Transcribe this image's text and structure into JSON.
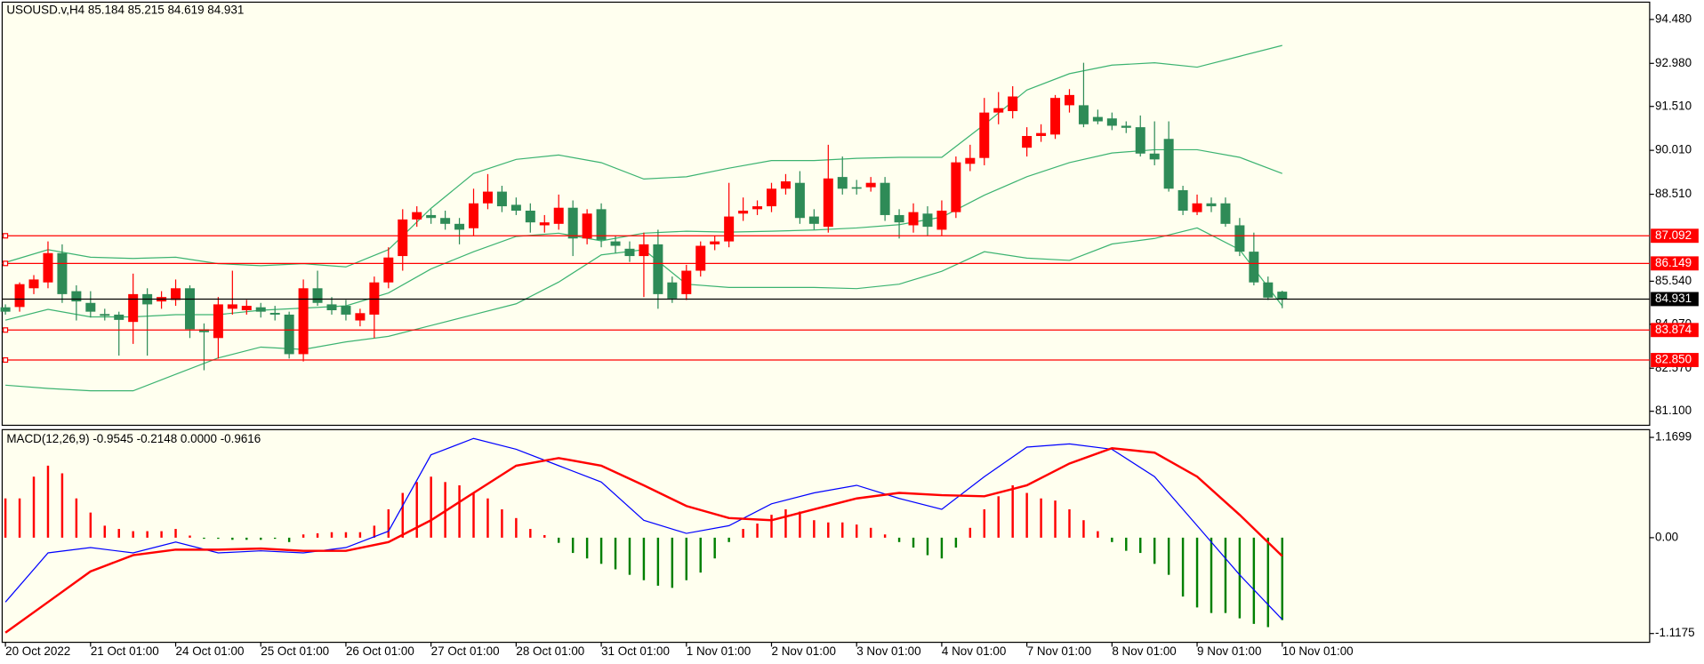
{
  "chart_data": [
    {
      "type": "candlestick",
      "title": "USOUSD.v,H4  85.184 85.215 84.619 84.931",
      "up_color": "#ff0000",
      "down_color": "#2e8b57",
      "open": [
        84.65,
        84.66,
        85.3,
        85.5,
        86.5,
        85.2,
        84.8,
        84.42,
        84.4,
        84.15,
        85.1,
        84.85,
        84.9,
        85.3,
        83.9,
        83.6,
        84.6,
        84.55,
        84.65,
        84.46,
        84.4,
        83.05,
        85.3,
        84.75,
        84.7,
        84.2,
        84.4,
        85.5,
        86.4,
        87.65,
        87.8,
        87.7,
        87.5,
        87.35,
        88.2,
        88.6,
        88.15,
        87.95,
        87.45,
        87.5,
        88.05,
        87.0,
        88.0,
        86.9,
        86.65,
        86.4,
        86.8,
        85.5,
        85.1,
        85.9,
        86.8,
        86.9,
        87.85,
        88.0,
        88.1,
        88.7,
        88.9,
        87.75,
        87.4,
        89.1,
        88.75,
        88.75,
        88.9,
        87.8,
        87.45,
        87.85,
        87.3,
        87.9,
        89.55,
        89.75,
        91.3,
        91.35,
        90.1,
        90.5,
        90.55,
        91.55,
        91.55,
        91.15,
        91.1,
        90.85,
        90.8,
        89.9,
        90.4,
        88.65,
        87.9,
        88.2,
        88.2,
        87.45,
        86.55,
        85.5,
        85.184
      ],
      "high": [
        84.75,
        85.5,
        85.75,
        86.9,
        86.8,
        85.4,
        85.2,
        84.6,
        84.5,
        85.8,
        85.3,
        85.2,
        85.6,
        85.4,
        84.1,
        85.0,
        85.9,
        84.9,
        84.8,
        84.7,
        84.5,
        85.6,
        85.9,
        85.0,
        84.9,
        84.6,
        85.7,
        86.7,
        88.0,
        88.1,
        88.0,
        87.95,
        87.7,
        88.7,
        89.2,
        88.8,
        88.4,
        88.2,
        87.8,
        88.5,
        88.3,
        88.0,
        88.2,
        87.1,
        86.9,
        87.2,
        87.3,
        85.7,
        86.1,
        86.9,
        87.1,
        88.9,
        88.4,
        88.3,
        88.9,
        89.2,
        89.3,
        88.0,
        90.2,
        89.8,
        89.0,
        89.1,
        89.1,
        88.0,
        88.2,
        88.1,
        88.3,
        89.8,
        90.2,
        91.8,
        92.0,
        92.2,
        90.8,
        90.9,
        91.9,
        92.1,
        93.0,
        91.4,
        91.3,
        91.0,
        91.2,
        91.0,
        91.0,
        88.8,
        88.5,
        88.4,
        88.4,
        87.7,
        87.2,
        85.7,
        85.215
      ],
      "low": [
        84.4,
        84.5,
        85.1,
        85.3,
        84.8,
        84.2,
        84.3,
        84.2,
        83.0,
        83.4,
        83.0,
        84.6,
        84.7,
        83.6,
        82.5,
        82.9,
        84.4,
        84.4,
        84.3,
        84.2,
        82.9,
        82.8,
        84.7,
        84.4,
        84.2,
        84.0,
        83.6,
        85.3,
        85.9,
        87.4,
        87.5,
        87.3,
        86.8,
        87.1,
        88.0,
        87.9,
        87.8,
        87.2,
        87.2,
        87.3,
        86.4,
        86.8,
        86.7,
        86.5,
        86.2,
        85.0,
        84.6,
        84.8,
        84.9,
        85.7,
        86.6,
        86.7,
        87.6,
        87.8,
        87.9,
        88.5,
        87.5,
        87.3,
        87.2,
        88.5,
        88.5,
        88.6,
        87.6,
        87.0,
        87.2,
        87.1,
        87.1,
        87.7,
        89.3,
        89.5,
        90.9,
        91.1,
        89.8,
        90.3,
        90.4,
        91.3,
        90.8,
        90.9,
        90.7,
        90.6,
        89.8,
        89.5,
        88.6,
        87.8,
        87.8,
        87.9,
        87.4,
        86.4,
        85.4,
        84.9,
        84.619
      ],
      "close": [
        84.5,
        85.44,
        85.6,
        86.5,
        85.1,
        84.85,
        84.5,
        84.36,
        84.22,
        85.1,
        84.75,
        85.0,
        85.3,
        83.9,
        83.8,
        84.75,
        84.75,
        84.7,
        84.5,
        84.4,
        83.05,
        85.3,
        84.8,
        84.55,
        84.4,
        84.45,
        85.5,
        86.35,
        87.65,
        87.9,
        87.7,
        87.5,
        87.3,
        88.2,
        88.6,
        88.1,
        87.95,
        87.55,
        87.55,
        88.05,
        87.0,
        87.85,
        86.95,
        86.75,
        86.4,
        86.8,
        85.1,
        84.95,
        85.9,
        86.75,
        86.9,
        87.75,
        87.95,
        88.1,
        88.7,
        88.95,
        87.7,
        87.5,
        89.05,
        88.7,
        88.7,
        88.9,
        87.8,
        87.55,
        87.9,
        87.4,
        87.95,
        89.6,
        89.75,
        91.3,
        91.45,
        91.85,
        90.5,
        90.6,
        91.8,
        91.9,
        90.9,
        91.0,
        90.85,
        90.78,
        89.9,
        89.7,
        88.7,
        87.95,
        88.2,
        88.1,
        87.5,
        86.55,
        85.5,
        84.98,
        84.931
      ],
      "bands": {
        "color": "#3cb371",
        "x": [
          0,
          3,
          6,
          9,
          12,
          15,
          18,
          21,
          24,
          27,
          30,
          33,
          36,
          39,
          42,
          45,
          48,
          51,
          54,
          57,
          60,
          63,
          66,
          69,
          72,
          75,
          78,
          81,
          84,
          87,
          90
        ],
        "upper": [
          86.18,
          86.62,
          86.36,
          86.32,
          86.36,
          86.14,
          86.07,
          86.14,
          86.03,
          86.62,
          88.03,
          89.22,
          89.7,
          89.85,
          89.59,
          89.03,
          89.11,
          89.4,
          89.66,
          89.66,
          89.74,
          89.77,
          89.77,
          90.89,
          92.07,
          92.63,
          92.92,
          93.0,
          92.85,
          93.22,
          93.59
        ],
        "middle": [
          84.21,
          84.58,
          84.32,
          84.32,
          84.4,
          84.4,
          84.55,
          84.62,
          84.7,
          85.14,
          85.96,
          86.55,
          87.07,
          87.18,
          86.92,
          87.18,
          87.25,
          87.22,
          87.25,
          87.29,
          87.36,
          87.47,
          87.73,
          88.48,
          89.11,
          89.59,
          89.92,
          90.03,
          90.03,
          89.77,
          89.22
        ],
        "lower": [
          81.99,
          81.88,
          81.8,
          81.8,
          82.36,
          82.92,
          83.29,
          83.21,
          83.47,
          83.66,
          84.03,
          84.4,
          84.77,
          85.51,
          86.44,
          86.62,
          85.44,
          85.33,
          85.33,
          85.33,
          85.29,
          85.44,
          85.88,
          86.55,
          86.33,
          86.25,
          86.81,
          87.0,
          87.36,
          86.62,
          84.7
        ]
      },
      "levels": [
        {
          "value": 87.092,
          "color": "#ff0000"
        },
        {
          "value": 86.149,
          "color": "#ff0000"
        },
        {
          "value": 83.874,
          "color": "#ff0000"
        },
        {
          "value": 82.85,
          "label": "82.850",
          "color": "#ff0000"
        }
      ],
      "last_price_color": "#000000",
      "xlim": [
        -0.23,
        115.9
      ],
      "xticks": [
        {
          "value": 0,
          "label": "20 Oct 2022"
        },
        {
          "value": 6,
          "label": "21 Oct 01:00"
        },
        {
          "value": 12,
          "label": "24 Oct 01:00"
        },
        {
          "value": 18,
          "label": "25 Oct 01:00"
        },
        {
          "value": 24,
          "label": "26 Oct 01:00"
        },
        {
          "value": 30,
          "label": "27 Oct 01:00"
        },
        {
          "value": 36,
          "label": "28 Oct 01:00"
        },
        {
          "value": 42,
          "label": "31 Oct 01:00"
        },
        {
          "value": 48,
          "label": "1 Nov 01:00"
        },
        {
          "value": 54,
          "label": "2 Nov 01:00"
        },
        {
          "value": 60,
          "label": "3 Nov 01:00"
        },
        {
          "value": 66,
          "label": "4 Nov 01:00"
        },
        {
          "value": 72,
          "label": "7 Nov 01:00"
        },
        {
          "value": 78,
          "label": "8 Nov 01:00"
        },
        {
          "value": 84,
          "label": "9 Nov 01:00"
        },
        {
          "value": 90,
          "label": "10 Nov 01:00"
        }
      ],
      "ylim": [
        80.62,
        95.07
      ],
      "yticks": [
        {
          "value": 94.48,
          "label": "94.480"
        },
        {
          "value": 92.98,
          "label": "92.980"
        },
        {
          "value": 91.51,
          "label": "91.510"
        },
        {
          "value": 90.01,
          "label": "90.010"
        },
        {
          "value": 88.51,
          "label": "88.510"
        },
        {
          "value": 85.54,
          "label": "85.540"
        },
        {
          "value": 84.07,
          "label": "84.070"
        },
        {
          "value": 82.57,
          "label": "82.570"
        },
        {
          "value": 81.1,
          "label": "81.100"
        }
      ]
    },
    {
      "type": "macd",
      "title": "MACD(12,26,9) -0.9545 -0.2148 0.0000 -0.9616",
      "hist_up_color": "#ff0000",
      "hist_down_color": "#008000",
      "histogram": [
        0.458,
        0.458,
        0.712,
        0.84,
        0.751,
        0.458,
        0.293,
        0.14,
        0.102,
        0.076,
        0.076,
        0.076,
        0.102,
        0.025,
        -0.013,
        -0.013,
        -0.025,
        -0.025,
        -0.025,
        -0.013,
        -0.051,
        0.038,
        0.051,
        0.064,
        0.064,
        0.064,
        0.14,
        0.331,
        0.522,
        0.649,
        0.712,
        0.649,
        0.611,
        0.522,
        0.458,
        0.331,
        0.229,
        0.102,
        0.03,
        -0.06,
        -0.178,
        -0.242,
        -0.305,
        -0.369,
        -0.433,
        -0.496,
        -0.56,
        -0.585,
        -0.496,
        -0.407,
        -0.242,
        -0.051,
        0.102,
        0.165,
        0.267,
        0.331,
        0.305,
        0.204,
        0.178,
        0.178,
        0.153,
        0.115,
        0.038,
        -0.051,
        -0.115,
        -0.204,
        -0.242,
        -0.115,
        0.115,
        0.331,
        0.483,
        0.611,
        0.522,
        0.458,
        0.433,
        0.331,
        0.204,
        0.076,
        -0.051,
        -0.153,
        -0.178,
        -0.305,
        -0.433,
        -0.687,
        -0.814,
        -0.878,
        -0.878,
        -0.941,
        -1.005,
        -1.043,
        -0.9616
      ],
      "line_x": [
        0,
        3,
        6,
        9,
        12,
        15,
        18,
        21,
        24,
        27,
        30,
        33,
        36,
        39,
        42,
        45,
        48,
        51,
        54,
        57,
        60,
        63,
        66,
        69,
        72,
        75,
        78,
        81,
        84,
        87,
        90
      ],
      "macd": {
        "color": "#0000ff",
        "values": [
          -0.751,
          -0.178,
          -0.115,
          -0.178,
          -0.051,
          -0.178,
          -0.153,
          -0.178,
          -0.115,
          0.076,
          0.967,
          1.158,
          1.031,
          0.84,
          0.649,
          0.204,
          0.051,
          0.14,
          0.394,
          0.522,
          0.611,
          0.458,
          0.331,
          0.712,
          1.056,
          1.094,
          1.031,
          0.712,
          0.14,
          -0.433,
          -0.9545
        ]
      },
      "signal": {
        "color": "#ff0000",
        "values": [
          -1.107,
          -0.751,
          -0.394,
          -0.204,
          -0.14,
          -0.14,
          -0.127,
          -0.153,
          -0.153,
          -0.051,
          0.204,
          0.522,
          0.84,
          0.929,
          0.84,
          0.611,
          0.369,
          0.229,
          0.204,
          0.331,
          0.458,
          0.522,
          0.496,
          0.483,
          0.611,
          0.865,
          1.043,
          0.992,
          0.712,
          0.267,
          -0.2148
        ]
      },
      "ylim": [
        -1.22,
        1.26
      ],
      "yticks": [
        1.1699,
        {
          "value": 0,
          "label": "0.00"
        },
        -1.1175
      ]
    }
  ]
}
